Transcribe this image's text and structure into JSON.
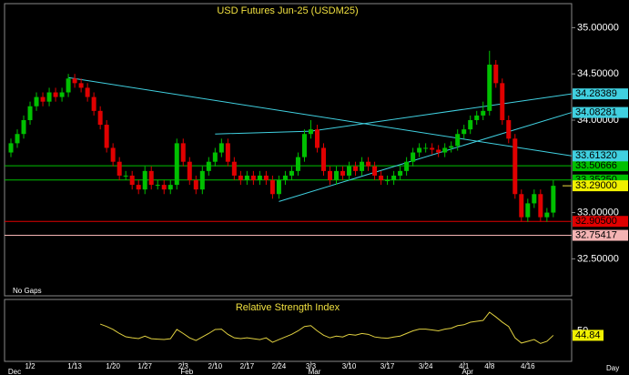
{
  "chart_data": [
    {
      "type": "candlestick",
      "title": "USD Futures Jun-25 (USDM25)",
      "note": "No Gaps",
      "period": "Day",
      "categories": [
        null,
        null,
        null,
        "1/2",
        null,
        null,
        null,
        null,
        null,
        null,
        "1/13",
        null,
        null,
        null,
        null,
        null,
        "1/20",
        null,
        null,
        null,
        null,
        "1/27",
        null,
        null,
        null,
        null,
        null,
        "2/3",
        null,
        null,
        null,
        null,
        "2/10",
        null,
        null,
        null,
        null,
        "2/17",
        null,
        null,
        null,
        null,
        "2/24",
        null,
        null,
        null,
        null,
        "3/3",
        null,
        null,
        null,
        null,
        null,
        "3/10",
        null,
        null,
        null,
        null,
        null,
        "3/17",
        null,
        null,
        null,
        null,
        null,
        "3/24",
        null,
        null,
        null,
        null,
        null,
        "4/1",
        null,
        null,
        null,
        "4/8",
        null,
        null,
        null,
        null,
        null,
        "4/16",
        null,
        null,
        null,
        null
      ],
      "months": [
        "Dec",
        null,
        null,
        null,
        null,
        null,
        null,
        null,
        null,
        null,
        null,
        null,
        null,
        null,
        null,
        null,
        null,
        null,
        null,
        null,
        null,
        null,
        null,
        null,
        null,
        null,
        null,
        "Feb",
        null,
        null,
        null,
        null,
        null,
        null,
        null,
        null,
        null,
        null,
        null,
        null,
        null,
        null,
        null,
        null,
        null,
        null,
        null,
        "Mar",
        null,
        null,
        null,
        null,
        null,
        null,
        null,
        null,
        null,
        null,
        null,
        null,
        null,
        null,
        null,
        null,
        null,
        null,
        null,
        null,
        null,
        null,
        null,
        "Apr",
        null,
        null,
        null,
        null,
        null,
        null,
        null,
        null,
        null,
        null,
        null,
        null,
        null,
        null
      ],
      "open": [
        33.65,
        33.75,
        33.85,
        34.0,
        34.15,
        34.25,
        34.2,
        34.3,
        34.25,
        34.3,
        34.45,
        34.4,
        34.35,
        34.25,
        34.1,
        33.95,
        33.7,
        33.55,
        33.4,
        33.4,
        33.3,
        33.25,
        33.45,
        33.3,
        33.3,
        33.25,
        33.3,
        33.75,
        33.55,
        33.35,
        33.25,
        33.45,
        33.55,
        33.65,
        33.75,
        33.55,
        33.4,
        33.35,
        33.4,
        33.35,
        33.4,
        33.35,
        33.2,
        33.35,
        33.4,
        33.45,
        33.6,
        33.85,
        33.9,
        33.7,
        33.45,
        33.35,
        33.45,
        33.4,
        33.5,
        33.45,
        33.55,
        33.5,
        33.4,
        33.35,
        33.35,
        33.4,
        33.45,
        33.55,
        33.65,
        33.7,
        33.7,
        33.68,
        33.65,
        33.7,
        33.72,
        33.85,
        33.9,
        34.0,
        34.05,
        34.1,
        34.6,
        34.4,
        34.0,
        33.8,
        33.2,
        32.95,
        33.1,
        33.2,
        32.95,
        33.0
      ],
      "high": [
        33.8,
        33.9,
        34.05,
        34.2,
        34.3,
        34.3,
        34.35,
        34.35,
        34.35,
        34.5,
        34.5,
        34.45,
        34.4,
        34.3,
        34.15,
        34.0,
        33.75,
        33.6,
        33.45,
        33.45,
        33.35,
        33.5,
        33.5,
        33.35,
        33.35,
        33.35,
        33.8,
        33.8,
        33.6,
        33.4,
        33.5,
        33.6,
        33.7,
        33.8,
        33.8,
        33.6,
        33.45,
        33.45,
        33.45,
        33.45,
        33.45,
        33.4,
        33.4,
        33.45,
        33.5,
        33.65,
        33.9,
        34.0,
        33.95,
        33.75,
        33.5,
        33.5,
        33.5,
        33.55,
        33.55,
        33.6,
        33.6,
        33.55,
        33.45,
        33.4,
        33.45,
        33.5,
        33.6,
        33.7,
        33.75,
        33.75,
        33.75,
        33.73,
        33.75,
        33.77,
        33.9,
        33.95,
        34.05,
        34.1,
        34.2,
        34.75,
        34.65,
        34.45,
        34.05,
        33.85,
        33.25,
        33.15,
        33.25,
        33.25,
        33.05,
        33.35
      ],
      "low": [
        33.6,
        33.7,
        33.8,
        33.95,
        34.1,
        34.15,
        34.15,
        34.2,
        34.2,
        34.25,
        34.35,
        34.3,
        34.2,
        34.05,
        33.9,
        33.65,
        33.5,
        33.35,
        33.35,
        33.25,
        33.2,
        33.2,
        33.25,
        33.25,
        33.2,
        33.2,
        33.25,
        33.5,
        33.3,
        33.2,
        33.2,
        33.4,
        33.5,
        33.6,
        33.5,
        33.35,
        33.3,
        33.3,
        33.3,
        33.3,
        33.3,
        33.15,
        33.15,
        33.3,
        33.35,
        33.4,
        33.55,
        33.8,
        33.65,
        33.4,
        33.3,
        33.3,
        33.35,
        33.35,
        33.4,
        33.4,
        33.45,
        33.35,
        33.3,
        33.3,
        33.3,
        33.35,
        33.4,
        33.5,
        33.6,
        33.65,
        33.63,
        33.6,
        33.6,
        33.65,
        33.67,
        33.8,
        33.85,
        33.95,
        34.0,
        34.05,
        34.35,
        33.95,
        33.75,
        33.15,
        32.9,
        32.9,
        33.05,
        32.9,
        32.9,
        32.95
      ],
      "close": [
        33.75,
        33.85,
        34.0,
        34.15,
        34.25,
        34.2,
        34.3,
        34.25,
        34.3,
        34.45,
        34.4,
        34.35,
        34.25,
        34.1,
        33.95,
        33.7,
        33.55,
        33.4,
        33.4,
        33.3,
        33.25,
        33.45,
        33.3,
        33.3,
        33.25,
        33.3,
        33.75,
        33.55,
        33.35,
        33.25,
        33.45,
        33.55,
        33.65,
        33.75,
        33.55,
        33.4,
        33.35,
        33.4,
        33.35,
        33.4,
        33.35,
        33.2,
        33.35,
        33.4,
        33.45,
        33.6,
        33.85,
        33.9,
        33.7,
        33.45,
        33.35,
        33.45,
        33.4,
        33.5,
        33.45,
        33.55,
        33.5,
        33.4,
        33.35,
        33.35,
        33.4,
        33.45,
        33.55,
        33.65,
        33.7,
        33.7,
        33.68,
        33.65,
        33.7,
        33.72,
        33.85,
        33.9,
        34.0,
        34.05,
        34.1,
        34.6,
        34.4,
        34.0,
        33.8,
        33.2,
        32.95,
        33.1,
        33.2,
        32.95,
        33.0,
        33.29
      ],
      "up_color": "#00c000",
      "down_color": "#e00000",
      "ylim": [
        32.1,
        35.25
      ],
      "yticks": [
        {
          "value": 35.0,
          "label": "35.00000"
        },
        {
          "value": 34.5,
          "label": "34.50000"
        },
        {
          "value": 34.0,
          "label": "34.00000"
        },
        {
          "value": 33.0,
          "label": "33.00000"
        },
        {
          "value": 32.5,
          "label": "32.50000"
        }
      ],
      "levels": [
        {
          "value": 33.50666,
          "label": "33.50666",
          "color": "#00c000"
        },
        {
          "value": 33.3525,
          "label": "33.35250",
          "color": "#00c000"
        },
        {
          "value": 32.905,
          "label": "32.90500",
          "color": "#e00000"
        },
        {
          "value": 32.75417,
          "label": "32.75417",
          "color": "#f4b4b4"
        }
      ],
      "trendlines": [
        {
          "x": [
            9,
            88
          ],
          "y": [
            34.46,
            33.6132
          ],
          "label": "33.61320"
        },
        {
          "x": [
            42,
            88
          ],
          "y": [
            33.12,
            34.08281
          ],
          "label": "34.08281"
        },
        {
          "x": [
            32,
            47,
            88
          ],
          "y": [
            33.85,
            33.88,
            34.28389
          ],
          "label": "34.28389"
        }
      ],
      "trend_color": "#40d0e0",
      "last": {
        "value": 33.29,
        "label": "33.29000"
      }
    },
    {
      "type": "line",
      "title": "Relative Strength Index",
      "color": "#e0d040",
      "values": [
        null,
        null,
        null,
        null,
        null,
        null,
        null,
        null,
        null,
        null,
        null,
        null,
        null,
        null,
        57.8,
        55,
        51.6,
        47,
        43.2,
        42,
        41.1,
        44,
        41,
        40.5,
        40.1,
        41,
        51.6,
        47,
        42,
        39,
        43,
        47,
        51.6,
        52,
        46,
        42,
        41.1,
        42,
        41,
        40,
        42,
        36.9,
        40,
        43,
        46,
        50,
        55,
        56,
        50,
        45,
        42,
        44,
        43,
        46,
        45,
        47,
        46,
        43,
        42,
        41.5,
        43,
        44,
        47,
        50,
        52,
        52,
        51,
        50,
        52,
        53,
        56,
        57,
        59.9,
        61,
        62,
        71.4,
        66,
        60,
        55,
        42,
        36,
        38,
        40,
        35.5,
        38,
        44.84
      ],
      "ylim": [
        15,
        85
      ],
      "yticks": [
        50
      ]
    }
  ]
}
